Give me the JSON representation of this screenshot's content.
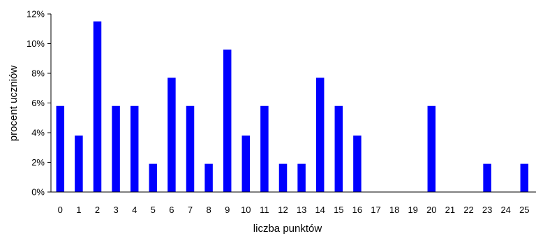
{
  "chart_data": {
    "type": "bar",
    "title": "",
    "xlabel": "liczba punktów",
    "ylabel": "procent  uczniów",
    "categories": [
      "0",
      "1",
      "2",
      "3",
      "4",
      "5",
      "6",
      "7",
      "8",
      "9",
      "10",
      "11",
      "12",
      "13",
      "14",
      "15",
      "16",
      "17",
      "18",
      "19",
      "20",
      "21",
      "22",
      "23",
      "24",
      "25"
    ],
    "series": [
      {
        "values": [
          5.8,
          3.8,
          11.5,
          5.8,
          5.8,
          1.9,
          7.7,
          5.8,
          1.9,
          9.6,
          3.8,
          5.8,
          1.9,
          1.9,
          7.7,
          5.8,
          3.8,
          0,
          0,
          0,
          5.8,
          0,
          0,
          1.9,
          0,
          1.9
        ],
        "color": "#0000ff"
      }
    ],
    "ylim": [
      0,
      12
    ],
    "yticks": [
      0,
      2,
      4,
      6,
      8,
      10,
      12
    ],
    "ytick_labels": [
      "0%",
      "2%",
      "4%",
      "6%",
      "8%",
      "10%",
      "12%"
    ],
    "grid": false,
    "legend": "none"
  }
}
